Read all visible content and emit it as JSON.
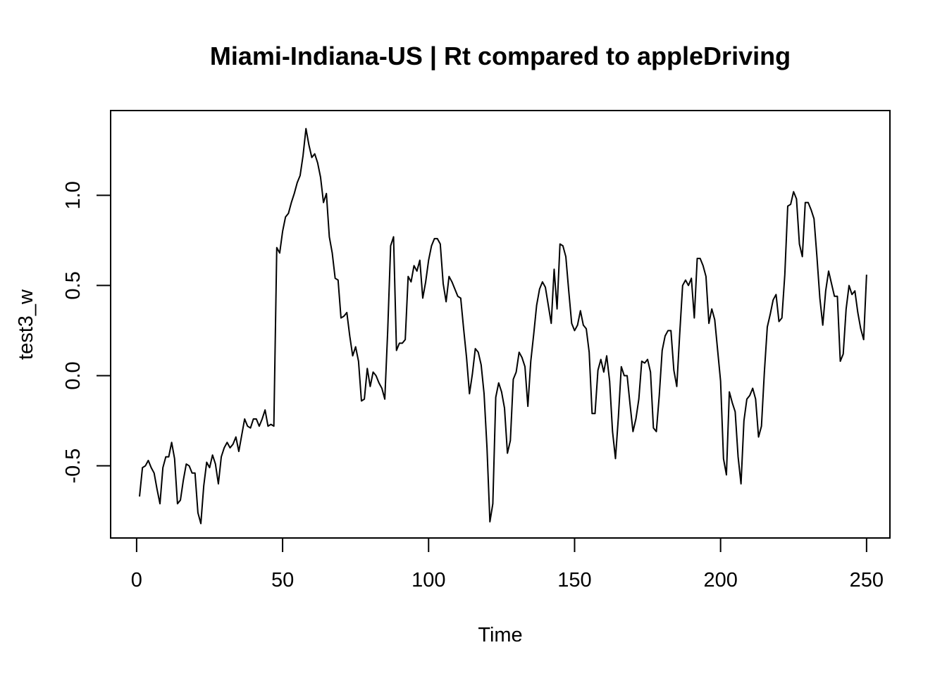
{
  "chart_data": {
    "type": "line",
    "title": "Miami-Indiana-US | Rt compared to appleDriving",
    "xlabel": "Time",
    "ylabel": "test3_w",
    "xlim": [
      -8.9,
      258
    ],
    "ylim": [
      -0.9,
      1.47
    ],
    "x_ticks": [
      0,
      50,
      100,
      150,
      200,
      250
    ],
    "x_tick_labels": [
      "0",
      "50",
      "100",
      "150",
      "200",
      "250"
    ],
    "y_ticks": [
      -0.5,
      0.0,
      0.5,
      1.0
    ],
    "y_tick_labels": [
      "-0.5",
      "0.0",
      "0.5",
      "1.0"
    ],
    "grid": false,
    "legend": "none",
    "series": [
      {
        "color": "#000000",
        "x_start": 1,
        "x_step": 1,
        "values": [
          -0.67,
          -0.51,
          -0.5,
          -0.47,
          -0.51,
          -0.54,
          -0.63,
          -0.71,
          -0.51,
          -0.45,
          -0.45,
          -0.37,
          -0.46,
          -0.71,
          -0.69,
          -0.58,
          -0.49,
          -0.5,
          -0.54,
          -0.54,
          -0.76,
          -0.82,
          -0.61,
          -0.48,
          -0.51,
          -0.44,
          -0.49,
          -0.6,
          -0.45,
          -0.4,
          -0.37,
          -0.4,
          -0.38,
          -0.34,
          -0.42,
          -0.33,
          -0.24,
          -0.28,
          -0.29,
          -0.24,
          -0.24,
          -0.28,
          -0.24,
          -0.19,
          -0.28,
          -0.27,
          -0.28,
          0.71,
          0.68,
          0.8,
          0.88,
          0.9,
          0.96,
          1.01,
          1.07,
          1.11,
          1.22,
          1.37,
          1.28,
          1.21,
          1.23,
          1.18,
          1.1,
          0.96,
          1.01,
          0.77,
          0.68,
          0.54,
          0.53,
          0.32,
          0.33,
          0.35,
          0.22,
          0.11,
          0.16,
          0.08,
          -0.14,
          -0.13,
          0.04,
          -0.06,
          0.02,
          0.0,
          -0.04,
          -0.07,
          -0.13,
          0.25,
          0.72,
          0.77,
          0.14,
          0.18,
          0.18,
          0.2,
          0.55,
          0.52,
          0.61,
          0.58,
          0.64,
          0.43,
          0.52,
          0.64,
          0.72,
          0.76,
          0.76,
          0.73,
          0.51,
          0.41,
          0.55,
          0.52,
          0.48,
          0.44,
          0.43,
          0.26,
          0.1,
          -0.1,
          0.01,
          0.15,
          0.13,
          0.06,
          -0.1,
          -0.4,
          -0.81,
          -0.71,
          -0.12,
          -0.04,
          -0.09,
          -0.18,
          -0.43,
          -0.36,
          -0.02,
          0.02,
          0.13,
          0.1,
          0.05,
          -0.17,
          0.08,
          0.23,
          0.39,
          0.48,
          0.52,
          0.49,
          0.39,
          0.29,
          0.59,
          0.37,
          0.73,
          0.72,
          0.66,
          0.47,
          0.29,
          0.25,
          0.28,
          0.36,
          0.28,
          0.26,
          0.13,
          -0.21,
          -0.21,
          0.03,
          0.09,
          0.02,
          0.11,
          -0.03,
          -0.31,
          -0.46,
          -0.23,
          0.05,
          0.0,
          0.0,
          -0.16,
          -0.31,
          -0.24,
          -0.13,
          0.08,
          0.07,
          0.09,
          0.02,
          -0.29,
          -0.31,
          -0.11,
          0.14,
          0.22,
          0.25,
          0.25,
          0.03,
          -0.06,
          0.23,
          0.5,
          0.53,
          0.5,
          0.54,
          0.32,
          0.65,
          0.65,
          0.61,
          0.55,
          0.29,
          0.37,
          0.31,
          0.14,
          -0.03,
          -0.46,
          -0.55,
          -0.09,
          -0.15,
          -0.2,
          -0.45,
          -0.6,
          -0.25,
          -0.13,
          -0.11,
          -0.07,
          -0.13,
          -0.34,
          -0.28,
          0.02,
          0.27,
          0.34,
          0.42,
          0.45,
          0.3,
          0.32,
          0.56,
          0.94,
          0.95,
          1.02,
          0.98,
          0.73,
          0.66,
          0.96,
          0.96,
          0.92,
          0.87,
          0.66,
          0.43,
          0.28,
          0.47,
          0.58,
          0.51,
          0.44,
          0.44,
          0.08,
          0.12,
          0.37,
          0.5,
          0.45,
          0.47,
          0.35,
          0.26,
          0.2,
          0.56
        ]
      }
    ]
  }
}
